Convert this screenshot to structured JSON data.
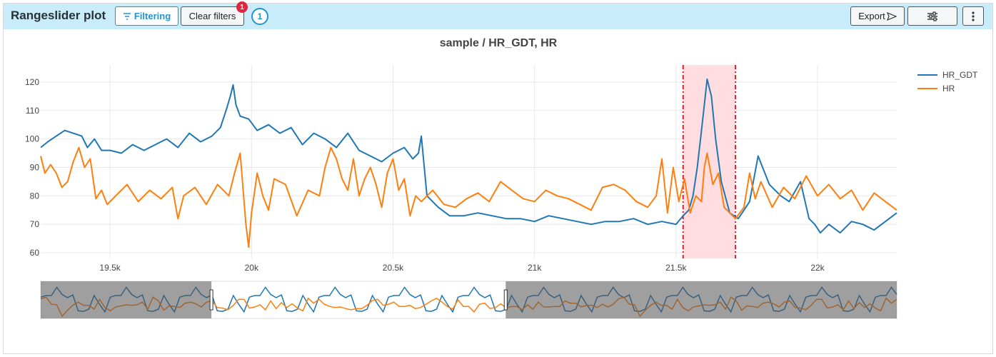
{
  "header": {
    "title": "Rangeslider plot",
    "filtering_label": "Filtering",
    "clear_filters_label": "Clear filters",
    "filters_badge": "1",
    "filter_count": "1",
    "export_label": "Export"
  },
  "colors": {
    "header_bg": "#c9ecfb",
    "accent": "#1f95d0",
    "hr_gdt": "#1f77b4",
    "hr": "#ff7f0e",
    "highlight_fill": "#ffdde0",
    "highlight_line": "#e0202a"
  },
  "icons": {
    "filter": "filter-lines-icon",
    "export": "send-arrow-icon",
    "settings": "sliders-icon",
    "more": "vertical-dots-icon"
  },
  "chart_data": {
    "type": "line",
    "title": "sample / HR_GDT, HR",
    "xlabel": "",
    "ylabel": "",
    "xlim": [
      19255,
      22280
    ],
    "ylim": [
      58,
      126
    ],
    "xticks": [
      19500,
      20000,
      20500,
      21000,
      21500,
      22000
    ],
    "xtick_labels": [
      "19.5k",
      "20k",
      "20.5k",
      "21k",
      "21.5k",
      "22k"
    ],
    "yticks": [
      60,
      70,
      80,
      90,
      100,
      110,
      120
    ],
    "grid": true,
    "legend_placement": "top-right",
    "highlight_range": [
      21525,
      21710
    ],
    "rangeslider": {
      "full_x_range": [
        17500,
        26300
      ],
      "selected_range": [
        19255,
        22280
      ]
    },
    "series": [
      {
        "name": "HR_GDT",
        "x": [
          19255,
          19280,
          19310,
          19340,
          19370,
          19400,
          19420,
          19445,
          19470,
          19500,
          19540,
          19580,
          19620,
          19660,
          19700,
          19740,
          19780,
          19820,
          19860,
          19890,
          19910,
          19925,
          19935,
          19945,
          19960,
          19990,
          20020,
          20060,
          20100,
          20140,
          20180,
          20220,
          20260,
          20300,
          20340,
          20380,
          20420,
          20460,
          20500,
          20540,
          20570,
          20590,
          20600,
          20620,
          20660,
          20700,
          20750,
          20800,
          20850,
          20900,
          20950,
          21000,
          21050,
          21100,
          21150,
          21200,
          21250,
          21300,
          21350,
          21400,
          21450,
          21500,
          21525,
          21545,
          21560,
          21575,
          21590,
          21600,
          21610,
          21625,
          21640,
          21660,
          21690,
          21720,
          21740,
          21760,
          21790,
          21830,
          21870,
          21900,
          21940,
          21970,
          21990,
          22010,
          22040,
          22080,
          22120,
          22160,
          22200,
          22240,
          22280
        ],
        "y": [
          97,
          99,
          101,
          103,
          102,
          101,
          97,
          100,
          96,
          96,
          95,
          98,
          96,
          98,
          100,
          97,
          102,
          99,
          101,
          104,
          110,
          115,
          119,
          112,
          108,
          107,
          103,
          105,
          102,
          104,
          98,
          102,
          100,
          97,
          102,
          96,
          94,
          92,
          95,
          97,
          93,
          95,
          101,
          80,
          76,
          73,
          73,
          74,
          73,
          72,
          72,
          71,
          73,
          72,
          71,
          70,
          71,
          71,
          72,
          70,
          71,
          70,
          73,
          75,
          80,
          90,
          103,
          112,
          121,
          115,
          100,
          85,
          74,
          72,
          75,
          78,
          94,
          84,
          80,
          78,
          85,
          72,
          70,
          67,
          70,
          67,
          71,
          70,
          68,
          71,
          74
        ]
      },
      {
        "name": "HR",
        "x": [
          19255,
          19270,
          19290,
          19310,
          19330,
          19350,
          19370,
          19390,
          19410,
          19430,
          19450,
          19470,
          19490,
          19520,
          19560,
          19600,
          19640,
          19680,
          19720,
          19740,
          19760,
          19800,
          19840,
          19880,
          19920,
          19940,
          19960,
          19980,
          19990,
          20000,
          20020,
          20040,
          20060,
          20080,
          20120,
          20160,
          20200,
          20240,
          20260,
          20280,
          20300,
          20320,
          20340,
          20360,
          20380,
          20400,
          20420,
          20440,
          20460,
          20480,
          20500,
          20520,
          20540,
          20560,
          20580,
          20600,
          20640,
          20680,
          20720,
          20760,
          20800,
          20840,
          20880,
          20920,
          20960,
          21000,
          21040,
          21080,
          21120,
          21160,
          21200,
          21240,
          21280,
          21320,
          21360,
          21400,
          21430,
          21450,
          21470,
          21490,
          21510,
          21530,
          21550,
          21570,
          21590,
          21600,
          21610,
          21630,
          21650,
          21670,
          21690,
          21710,
          21740,
          21760,
          21780,
          21800,
          21840,
          21880,
          21920,
          21960,
          22000,
          22040,
          22080,
          22120,
          22160,
          22200,
          22240,
          22280
        ],
        "y": [
          94,
          88,
          91,
          88,
          83,
          85,
          92,
          97,
          90,
          93,
          79,
          82,
          77,
          80,
          84,
          78,
          82,
          79,
          83,
          72,
          80,
          83,
          77,
          84,
          80,
          88,
          95,
          70,
          62,
          74,
          88,
          80,
          75,
          86,
          84,
          73,
          82,
          80,
          90,
          97,
          93,
          86,
          82,
          93,
          80,
          86,
          90,
          84,
          76,
          88,
          93,
          82,
          86,
          73,
          80,
          78,
          82,
          77,
          76,
          79,
          81,
          78,
          85,
          82,
          79,
          78,
          82,
          80,
          79,
          77,
          75,
          83,
          84,
          82,
          78,
          76,
          80,
          93,
          74,
          90,
          78,
          86,
          74,
          80,
          78,
          90,
          95,
          84,
          88,
          76,
          74,
          72,
          76,
          88,
          79,
          85,
          76,
          83,
          79,
          87,
          80,
          84,
          79,
          82,
          75,
          81,
          78,
          75
        ]
      }
    ]
  }
}
